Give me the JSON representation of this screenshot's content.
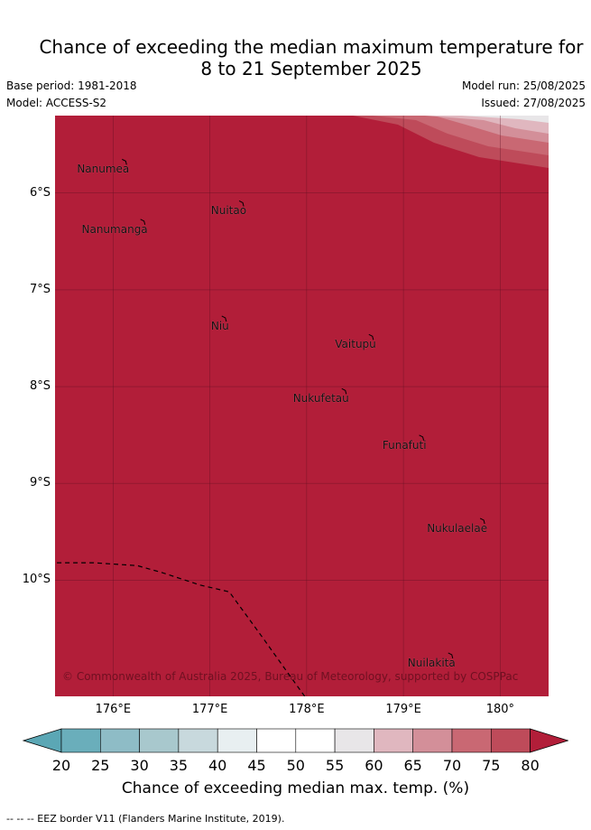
{
  "title_line1": "Chance of exceeding the median maximum temperature for",
  "title_line2": "8 to 21 September 2025",
  "base_period": "Base period: 1981-2018",
  "model": "Model: ACCESS-S2",
  "model_run": "Model run: 25/08/2025",
  "issued": "Issued: 27/08/2025",
  "copyright": "© Commonwealth of Australia 2025, Bureau of Meteorology, supported by COSPPac",
  "places": [
    {
      "name": "Nanumea",
      "lon": 176.13,
      "lat": -5.67
    },
    {
      "name": "Nuitao",
      "lon": 177.34,
      "lat": -6.1
    },
    {
      "name": "Nanumanga",
      "lon": 176.32,
      "lat": -6.29
    },
    {
      "name": "Niu",
      "lon": 177.16,
      "lat": -7.29
    },
    {
      "name": "Vaitupu",
      "lon": 178.68,
      "lat": -7.48
    },
    {
      "name": "Nukufetau",
      "lon": 178.4,
      "lat": -8.04
    },
    {
      "name": "Funafuti",
      "lon": 179.2,
      "lat": -8.52
    },
    {
      "name": "Nukulaelae",
      "lon": 179.83,
      "lat": -9.38
    },
    {
      "name": "Nuilakita",
      "lon": 179.5,
      "lat": -10.77
    }
  ],
  "lat_labels": [
    "6°S",
    "7°S",
    "8°S",
    "9°S",
    "10°S"
  ],
  "lon_labels": [
    "176°E",
    "177°E",
    "178°E",
    "179°E",
    "180°"
  ],
  "colorbar": {
    "ticks": [
      "20",
      "25",
      "30",
      "35",
      "40",
      "45",
      "50",
      "55",
      "60",
      "65",
      "70",
      "75",
      "80"
    ],
    "colors": [
      "#6aaebb",
      "#8ebcc6",
      "#a8c8cd",
      "#c8d9dd",
      "#e8eff1",
      "#ffffff",
      "#ffffff",
      "#e8e6e8",
      "#e0b7bf",
      "#d38f99",
      "#c96873",
      "#be4b5a",
      "#b21e39"
    ],
    "under_color": "#5ba7b5",
    "over_color": "#b21e39",
    "label": "Chance of exceeding median max. temp. (%)"
  },
  "footer": "--  --  -- EEZ border V11 (Flanders Marine Institute, 2019).",
  "map_data": {
    "lon_range": [
      175.4,
      180.5
    ],
    "lat_range": [
      -11.2,
      -5.2
    ],
    "field_color": "#b21e39",
    "eez_border": [
      [
        175.42,
        -9.82
      ],
      [
        175.8,
        -9.82
      ],
      [
        176.25,
        -9.85
      ],
      [
        176.5,
        -9.92
      ],
      [
        176.9,
        -10.05
      ],
      [
        177.2,
        -10.12
      ],
      [
        177.55,
        -10.6
      ],
      [
        177.8,
        -10.95
      ],
      [
        177.98,
        -11.2
      ]
    ]
  }
}
